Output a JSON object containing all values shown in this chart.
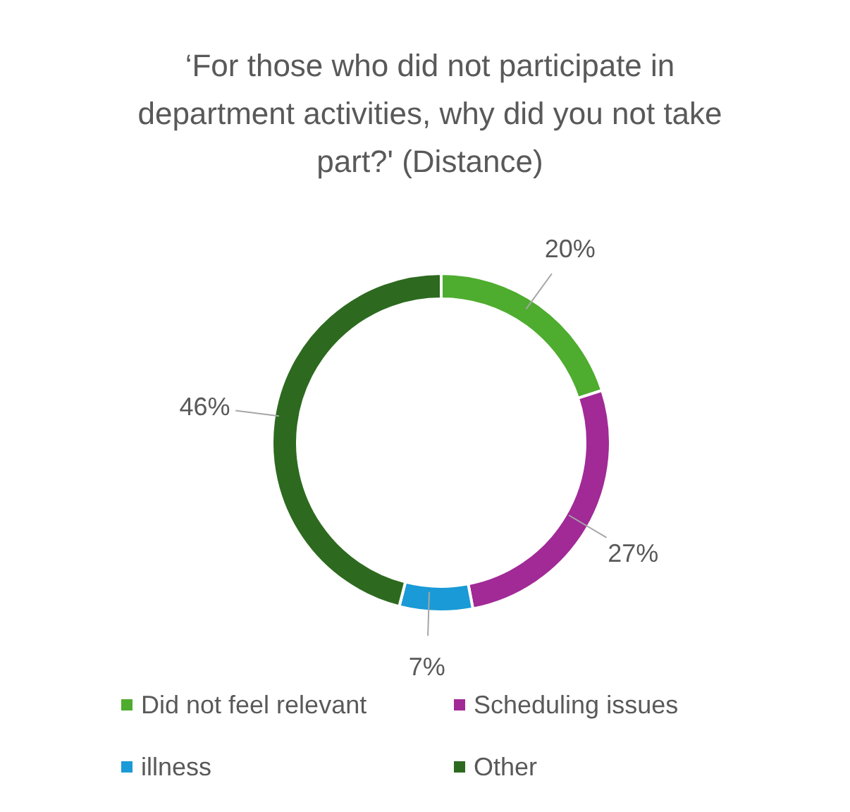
{
  "chart_data": {
    "type": "donut",
    "title": "‘For those who did not participate in department activities, why did you not take part?' (Distance)",
    "categories": [
      "Did not feel relevant",
      "Scheduling issues",
      "illness",
      "Other"
    ],
    "values": [
      20,
      27,
      7,
      46
    ],
    "value_labels": [
      "20%",
      "27%",
      "7%",
      "46%"
    ],
    "colors": [
      "#4eac2f",
      "#a12a96",
      "#1a9ad6",
      "#2d6a1f"
    ],
    "legend": "bottom"
  }
}
